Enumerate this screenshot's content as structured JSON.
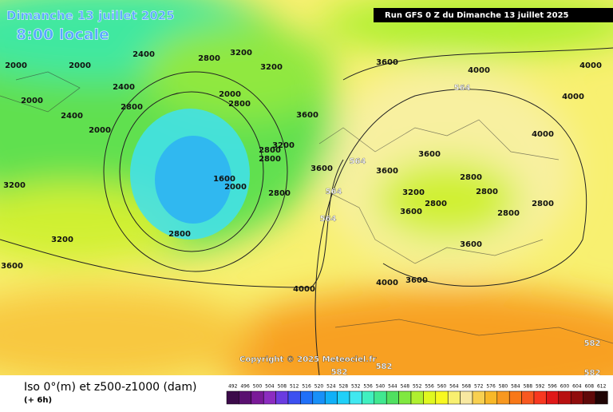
{
  "header": {
    "title": "Dimanche 13 juillet 2025",
    "time": "8:00 locale",
    "run": "Run GFS 0 Z du Dimanche 13 juillet 2025"
  },
  "copyright": "Copyright © 2025 Meteociel.fr",
  "footer": {
    "caption": "Iso 0°(m) et z500-z1000 (dam)",
    "lead": "(+ 6h)"
  },
  "contour_labels": [
    2000,
    2400,
    2800,
    2000,
    2400,
    2000,
    2400,
    2800,
    3200,
    2000,
    2800,
    3200,
    3600,
    4000,
    4000,
    4000,
    3600,
    2800,
    3200,
    2800,
    1600,
    2000,
    2800,
    2800,
    3200,
    3200,
    3600,
    4000,
    3600,
    3600,
    3600,
    3200,
    2800,
    2800,
    2800,
    2800,
    2800,
    3600,
    3600,
    4000,
    3600,
    2000,
    4000
  ],
  "thickness_labels": [
    564,
    564,
    564,
    564,
    582,
    582,
    582,
    582
  ],
  "scale": {
    "labels": [
      492,
      496,
      500,
      504,
      508,
      512,
      516,
      520,
      524,
      528,
      532,
      536,
      540,
      544,
      548,
      552,
      556,
      560,
      564,
      568,
      572,
      576,
      580,
      584,
      588,
      592,
      596,
      600,
      604,
      608,
      612
    ],
    "colors": [
      "#3c0a4a",
      "#5a1070",
      "#7a1a98",
      "#8c2cc0",
      "#6a3ce0",
      "#3c50f0",
      "#2070f8",
      "#1890f8",
      "#10b0f8",
      "#20d0f8",
      "#40e8f0",
      "#40f0c0",
      "#40e890",
      "#50e060",
      "#80e840",
      "#b0f030",
      "#e0f820",
      "#f8f820",
      "#f8f070",
      "#f8e8a0",
      "#f8d050",
      "#f8b828",
      "#f89820",
      "#f87818",
      "#f85820",
      "#f83820",
      "#e01818",
      "#b81010",
      "#900c0c",
      "#600808",
      "#200404"
    ]
  }
}
